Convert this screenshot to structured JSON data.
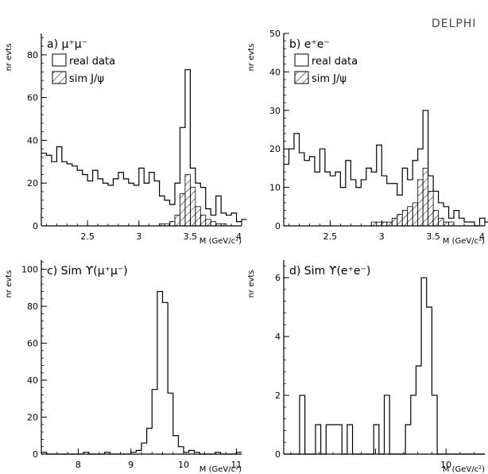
{
  "figure": {
    "label": "DELPHI"
  },
  "chart_data": [
    {
      "type": "bar",
      "title": "a) μ⁺μ⁻",
      "xlabel": "M (GeV/c²)",
      "ylabel": "nr evts",
      "xlim": [
        2.05,
        4.0
      ],
      "ylim": [
        0,
        90
      ],
      "xticks": [
        2.5,
        3.0,
        3.5,
        4.0
      ],
      "xtick_labels": [
        "2.5",
        "3",
        "3.5",
        "4"
      ],
      "yticks": [
        0,
        20,
        40,
        60,
        80
      ],
      "bin_start": 2.05,
      "bin_width": 0.05,
      "legend": [
        "real data",
        "sim J/ψ"
      ],
      "series": [
        {
          "name": "real data",
          "style": "step",
          "values": [
            34,
            33,
            30,
            37,
            30,
            29,
            28,
            26,
            24,
            21,
            26,
            22,
            20,
            19,
            22,
            25,
            22,
            20,
            19,
            27,
            20,
            25,
            21,
            14,
            12,
            10,
            20,
            46,
            73,
            27,
            20,
            18,
            8,
            5,
            14,
            6,
            5,
            6,
            2,
            3
          ]
        },
        {
          "name": "sim J/ψ",
          "style": "hatched",
          "values": [
            0,
            0,
            0,
            0,
            0,
            0,
            0,
            0,
            0,
            0,
            0,
            0,
            0,
            0,
            0,
            0,
            0,
            0,
            0,
            0,
            0,
            0,
            0,
            1,
            1,
            2,
            5,
            15,
            24,
            18,
            9,
            5,
            3,
            2,
            1,
            1,
            0,
            0,
            0,
            0
          ]
        }
      ]
    },
    {
      "type": "bar",
      "title": "b) e⁺e⁻",
      "xlabel": "M (GeV/c²)",
      "ylabel": "nr evts",
      "xlim": [
        2.05,
        4.0
      ],
      "ylim": [
        0,
        50
      ],
      "xticks": [
        2.5,
        3.0,
        3.5,
        4.0
      ],
      "xtick_labels": [
        "2.5",
        "3",
        "3.5",
        "4"
      ],
      "yticks": [
        0,
        10,
        20,
        30,
        40,
        50
      ],
      "bin_start": 2.05,
      "bin_width": 0.05,
      "legend": [
        "real data",
        "sim J/ψ"
      ],
      "series": [
        {
          "name": "real data",
          "style": "step",
          "values": [
            16,
            20,
            24,
            19,
            17,
            18,
            14,
            20,
            14,
            13,
            14,
            10,
            17,
            12,
            10,
            12,
            15,
            14,
            21,
            13,
            11,
            11,
            8,
            15,
            12,
            17,
            20,
            30,
            13,
            9,
            6,
            5,
            2,
            4,
            2,
            1,
            1,
            0,
            2,
            1
          ]
        },
        {
          "name": "sim J/ψ",
          "style": "hatched",
          "values": [
            0,
            0,
            0,
            0,
            0,
            0,
            0,
            0,
            0,
            0,
            0,
            0,
            0,
            0,
            0,
            0,
            0,
            1,
            1,
            1,
            1,
            2,
            3,
            4,
            5,
            6,
            12,
            15,
            9,
            4,
            2,
            1,
            1,
            0,
            0,
            0,
            0,
            0,
            0,
            0
          ]
        }
      ]
    },
    {
      "type": "bar",
      "title": "c) Sim ϒ(μ⁺μ⁻)",
      "xlabel": "M (GeV/c²)",
      "ylabel": "nr evts",
      "xlim": [
        7.3,
        11.1
      ],
      "ylim": [
        0,
        105
      ],
      "xticks": [
        8,
        9,
        10,
        11
      ],
      "xtick_labels": [
        "8",
        "9",
        "10",
        "11"
      ],
      "yticks": [
        0,
        20,
        40,
        60,
        80,
        100
      ],
      "bin_start": 7.3,
      "bin_width": 0.1,
      "series": [
        {
          "name": "",
          "style": "step",
          "values": [
            1,
            0,
            0,
            0,
            0,
            0,
            0,
            0,
            1,
            0,
            0,
            0,
            1,
            0,
            0,
            0,
            0,
            1,
            2,
            6,
            14,
            35,
            88,
            82,
            33,
            10,
            4,
            1,
            2,
            1,
            0,
            0,
            0,
            1,
            0,
            0,
            0,
            1
          ]
        }
      ]
    },
    {
      "type": "bar",
      "title": "d) Sim ϒ(e⁺e⁻)",
      "xlabel": "M (GeV/c²)",
      "ylabel": "nr evts",
      "xlim": [
        5.4,
        11.1
      ],
      "ylim": [
        0,
        6.6
      ],
      "xticks": [
        6,
        8,
        10
      ],
      "xtick_labels": [
        "",
        "",
        "10"
      ],
      "yticks": [
        0,
        2,
        4,
        6
      ],
      "bin_start": 5.4,
      "bin_width": 0.15,
      "series": [
        {
          "name": "",
          "style": "step",
          "values": [
            0,
            0,
            0,
            2,
            0,
            0,
            1,
            0,
            1,
            1,
            1,
            0,
            1,
            0,
            0,
            0,
            0,
            1,
            0,
            2,
            0,
            0,
            0,
            1,
            2,
            3,
            6,
            5,
            2,
            0,
            0,
            0,
            0,
            0,
            0,
            0,
            0,
            0
          ]
        }
      ]
    }
  ]
}
